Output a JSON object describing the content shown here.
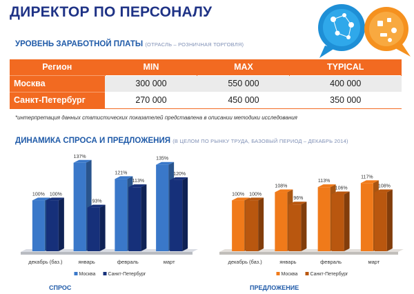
{
  "title": "ДИРЕКТОР ПО ПЕРСОНАЛУ",
  "salary_section": {
    "title": "УРОВЕНЬ ЗАРАБОТНОЙ ПЛАТЫ",
    "subtitle": "(ОТРАСЛЬ – РОЗНИЧНАЯ ТОРГОВЛЯ)",
    "headers": [
      "Регион",
      "MIN",
      "MAX",
      "TYPICAL"
    ],
    "rows": [
      {
        "region": "Москва",
        "min": "300 000",
        "max": "550 000",
        "typical": "400 000"
      },
      {
        "region": "Санкт-Петербург",
        "min": "270 000",
        "max": "450 000",
        "typical": "350 000"
      }
    ],
    "footnote": "*интерпретация данных статистических показателей представлена в описании методики исследования"
  },
  "dynamics_section": {
    "title": "ДИНАМИКА СПРОСА И ПРЕДЛОЖЕНИЯ",
    "subtitle": "(В ЦЕЛОМ ПО РЫНКУ ТРУДА, БАЗОВЫЙ ПЕРИОД – ДЕКАБРЬ 2014)"
  },
  "colors": {
    "orange": "#f26a21",
    "title_blue": "#1f3386",
    "section_blue": "#1f5aa8",
    "moscow_demand": "#3a78c9",
    "spb_demand": "#16307a",
    "moscow_supply": "#f07a1a",
    "spb_supply": "#b9570f"
  },
  "chart_data": [
    {
      "type": "bar",
      "title": "СПРОС",
      "categories": [
        "декабрь (баз.)",
        "январь",
        "февраль",
        "март"
      ],
      "series": [
        {
          "name": "Москва",
          "values": [
            100,
            137,
            121,
            135
          ],
          "labels": [
            "100%",
            "137%",
            "121%",
            "135%"
          ]
        },
        {
          "name": "Санкт-Петербург",
          "values": [
            100,
            93,
            113,
            120
          ],
          "labels": [
            "100%",
            "93%",
            "113%",
            "120%"
          ]
        }
      ],
      "ylim": [
        50,
        145
      ],
      "legend": "bottom"
    },
    {
      "type": "bar",
      "title": "ПРЕДЛОЖЕНИЕ",
      "categories": [
        "декабрь (баз.)",
        "январь",
        "февраль",
        "март"
      ],
      "series": [
        {
          "name": "Москва",
          "values": [
            100,
            108,
            113,
            117
          ],
          "labels": [
            "100%",
            "108%",
            "113%",
            "117%"
          ]
        },
        {
          "name": "Санкт-Петербург",
          "values": [
            100,
            96,
            106,
            108
          ],
          "labels": [
            "100%",
            "96%",
            "106%",
            "108%"
          ]
        }
      ],
      "ylim": [
        50,
        145
      ],
      "legend": "bottom"
    }
  ]
}
